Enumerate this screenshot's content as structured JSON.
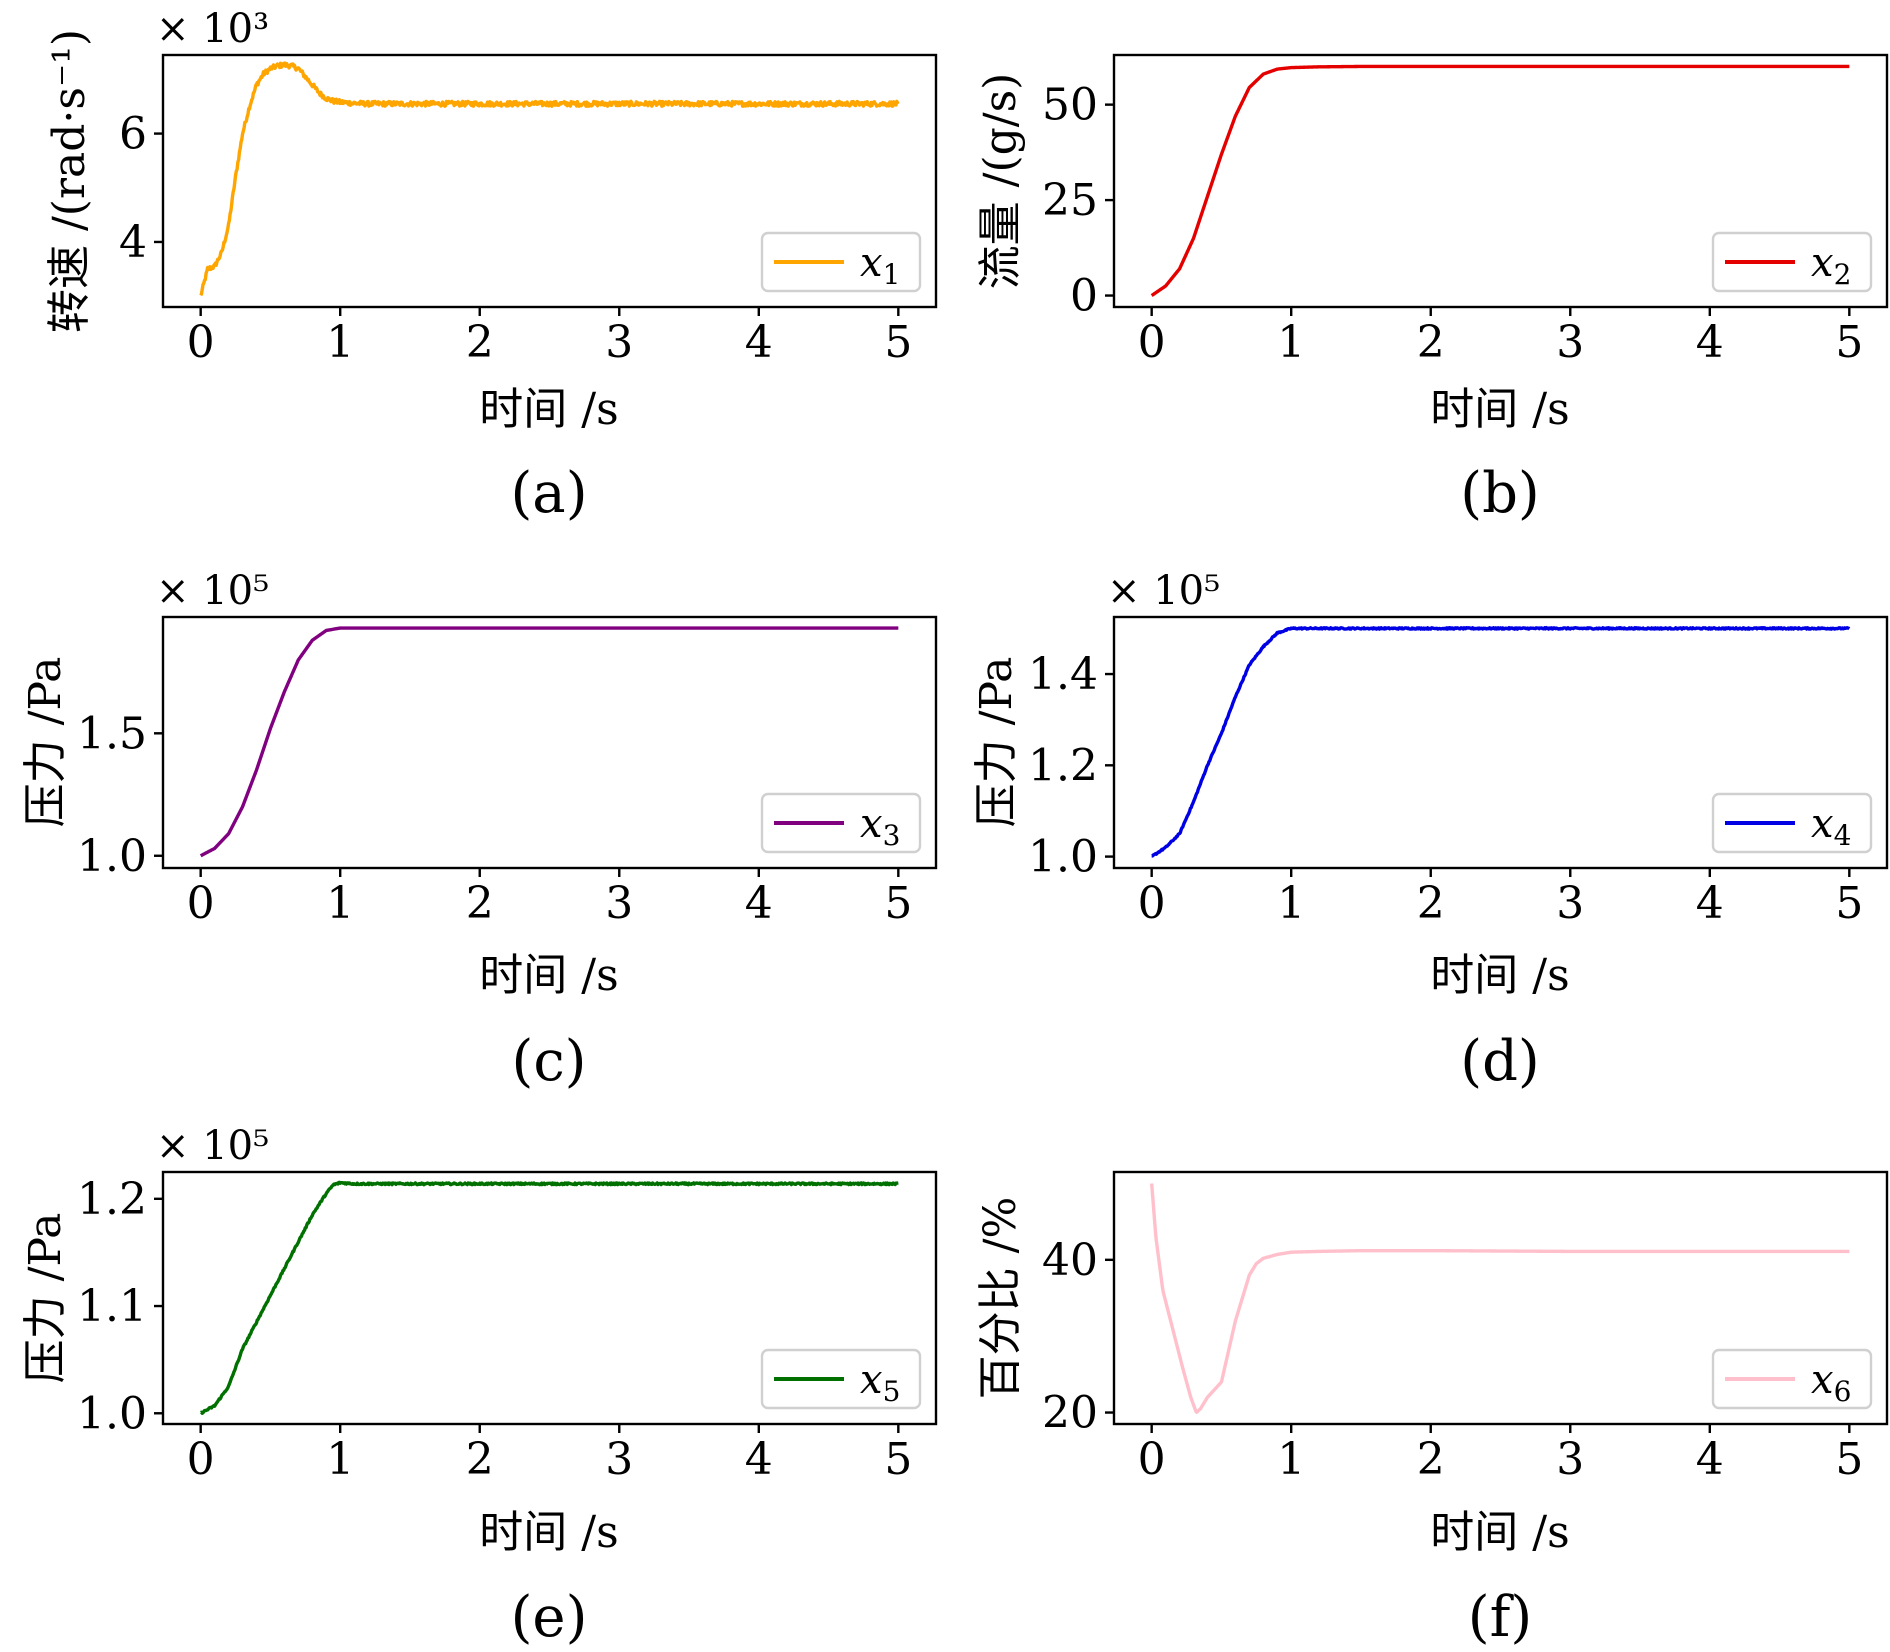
{
  "figure": {
    "x_axis_label": "时间 /s"
  },
  "chart_data": [
    {
      "panel": "(a)",
      "type": "line",
      "ylabel": "转速 /(rad·s⁻¹)",
      "xlabel": "时间 /s",
      "exponent_label": "× 10³",
      "xlim": [
        -0.27,
        5.27
      ],
      "ylim": [
        2.8,
        7.45
      ],
      "xticks": [
        "0",
        "1",
        "2",
        "3",
        "4",
        "5"
      ],
      "yticks": [
        "4",
        "6"
      ],
      "ytick_values": [
        4,
        6
      ],
      "legend": {
        "position": "lower right",
        "var": "x",
        "sub": "1"
      },
      "series": [
        {
          "color": "#FFA500",
          "noise": 0.045,
          "x": [
            0,
            0.03,
            0.05,
            0.1,
            0.15,
            0.2,
            0.25,
            0.3,
            0.35,
            0.4,
            0.45,
            0.5,
            0.55,
            0.6,
            0.65,
            0.7,
            0.75,
            0.8,
            0.85,
            0.9,
            0.95,
            1.0,
            1.1,
            1.2,
            1.5,
            2.0,
            3.0,
            4.0,
            5.0
          ],
          "y": [
            3.0,
            3.3,
            3.5,
            3.55,
            3.8,
            4.3,
            5.2,
            6.0,
            6.5,
            6.9,
            7.1,
            7.2,
            7.25,
            7.27,
            7.25,
            7.2,
            7.05,
            6.9,
            6.75,
            6.65,
            6.6,
            6.58,
            6.56,
            6.55,
            6.55,
            6.55,
            6.55,
            6.55,
            6.55
          ]
        }
      ]
    },
    {
      "panel": "(b)",
      "type": "line",
      "ylabel": "流量 /(g/s)",
      "xlabel": "时间 /s",
      "exponent_label": "",
      "xlim": [
        -0.27,
        5.27
      ],
      "ylim": [
        -3,
        63
      ],
      "xticks": [
        "0",
        "1",
        "2",
        "3",
        "4",
        "5"
      ],
      "yticks": [
        "0",
        "25",
        "50"
      ],
      "ytick_values": [
        0,
        25,
        50
      ],
      "legend": {
        "position": "lower right",
        "var": "x",
        "sub": "2"
      },
      "series": [
        {
          "color": "#E50000",
          "noise": 0.0,
          "x": [
            0,
            0.1,
            0.2,
            0.3,
            0.4,
            0.5,
            0.6,
            0.7,
            0.8,
            0.9,
            1.0,
            1.2,
            1.5,
            2.0,
            3.0,
            4.0,
            5.0
          ],
          "y": [
            0,
            2.5,
            7,
            15,
            26,
            37,
            47,
            54.5,
            58,
            59.3,
            59.7,
            59.9,
            60,
            60,
            60,
            60,
            60
          ]
        }
      ]
    },
    {
      "panel": "(c)",
      "type": "line",
      "ylabel": "压力 /Pa",
      "xlabel": "时间 /s",
      "exponent_label": "× 10⁵",
      "xlim": [
        -0.27,
        5.27
      ],
      "ylim": [
        0.95,
        1.975
      ],
      "xticks": [
        "0",
        "1",
        "2",
        "3",
        "4",
        "5"
      ],
      "yticks": [
        "1.0",
        "1.5"
      ],
      "ytick_values": [
        1.0,
        1.5
      ],
      "legend": {
        "position": "lower right",
        "var": "x",
        "sub": "3"
      },
      "series": [
        {
          "color": "#800080",
          "noise": 0.0,
          "x": [
            0,
            0.1,
            0.2,
            0.3,
            0.4,
            0.5,
            0.6,
            0.7,
            0.8,
            0.9,
            1.0,
            1.2,
            1.5,
            2.0,
            3.0,
            4.0,
            5.0
          ],
          "y": [
            1.0,
            1.03,
            1.09,
            1.2,
            1.35,
            1.52,
            1.67,
            1.8,
            1.88,
            1.92,
            1.93,
            1.93,
            1.93,
            1.93,
            1.93,
            1.93,
            1.93
          ]
        }
      ]
    },
    {
      "panel": "(d)",
      "type": "line",
      "ylabel": "压力 /Pa",
      "xlabel": "时间 /s",
      "exponent_label": "× 10⁵",
      "xlim": [
        -0.27,
        5.27
      ],
      "ylim": [
        0.975,
        1.525
      ],
      "xticks": [
        "0",
        "1",
        "2",
        "3",
        "4",
        "5"
      ],
      "yticks": [
        "1.0",
        "1.2",
        "1.4"
      ],
      "ytick_values": [
        1.0,
        1.2,
        1.4
      ],
      "legend": {
        "position": "lower right",
        "var": "x",
        "sub": "4"
      },
      "series": [
        {
          "color": "#0000E5",
          "noise": 0.0015,
          "x": [
            0,
            0.1,
            0.2,
            0.3,
            0.4,
            0.5,
            0.6,
            0.7,
            0.8,
            0.9,
            1.0,
            1.2,
            1.5,
            2.0,
            3.0,
            4.0,
            5.0
          ],
          "y": [
            1.0,
            1.02,
            1.05,
            1.12,
            1.2,
            1.27,
            1.35,
            1.42,
            1.46,
            1.49,
            1.5,
            1.5,
            1.5,
            1.5,
            1.5,
            1.5,
            1.5
          ]
        }
      ]
    },
    {
      "panel": "(e)",
      "type": "line",
      "ylabel": "压力 /Pa",
      "xlabel": "时间 /s",
      "exponent_label": "× 10⁵",
      "xlim": [
        -0.27,
        5.27
      ],
      "ylim": [
        0.99,
        1.225
      ],
      "xticks": [
        "0",
        "1",
        "2",
        "3",
        "4",
        "5"
      ],
      "yticks": [
        "1.0",
        "1.1",
        "1.2"
      ],
      "ytick_values": [
        1.0,
        1.1,
        1.2
      ],
      "legend": {
        "position": "lower right",
        "var": "x",
        "sub": "5"
      },
      "series": [
        {
          "color": "#007000",
          "noise": 0.0008,
          "x": [
            0,
            0.1,
            0.2,
            0.3,
            0.4,
            0.5,
            0.6,
            0.7,
            0.8,
            0.9,
            0.95,
            1.0,
            1.1,
            1.2,
            1.5,
            2.0,
            3.0,
            4.0,
            5.0
          ],
          "y": [
            1.0,
            1.007,
            1.025,
            1.06,
            1.085,
            1.11,
            1.135,
            1.16,
            1.185,
            1.205,
            1.213,
            1.215,
            1.214,
            1.214,
            1.214,
            1.214,
            1.214,
            1.214,
            1.214
          ]
        }
      ]
    },
    {
      "panel": "(f)",
      "type": "line",
      "ylabel": "百分比 /%",
      "xlabel": "时间 /s",
      "exponent_label": "",
      "xlim": [
        -0.27,
        5.27
      ],
      "ylim": [
        18.5,
        51.5
      ],
      "xticks": [
        "0",
        "1",
        "2",
        "3",
        "4",
        "5"
      ],
      "yticks": [
        "20",
        "40"
      ],
      "ytick_values": [
        20,
        40
      ],
      "legend": {
        "position": "lower right",
        "var": "x",
        "sub": "6"
      },
      "series": [
        {
          "color": "#FFC0CB",
          "noise": 0.0,
          "x": [
            0,
            0.03,
            0.08,
            0.15,
            0.22,
            0.28,
            0.32,
            0.35,
            0.4,
            0.45,
            0.5,
            0.55,
            0.6,
            0.65,
            0.7,
            0.75,
            0.8,
            0.9,
            1.0,
            1.2,
            1.5,
            2.0,
            3.0,
            4.0,
            5.0
          ],
          "y": [
            50,
            43,
            36,
            31,
            26,
            22,
            20,
            20.5,
            22,
            23,
            24,
            28,
            32,
            35,
            38,
            39.5,
            40.2,
            40.7,
            41,
            41.1,
            41.2,
            41.2,
            41.1,
            41.1,
            41.1
          ]
        }
      ]
    }
  ]
}
